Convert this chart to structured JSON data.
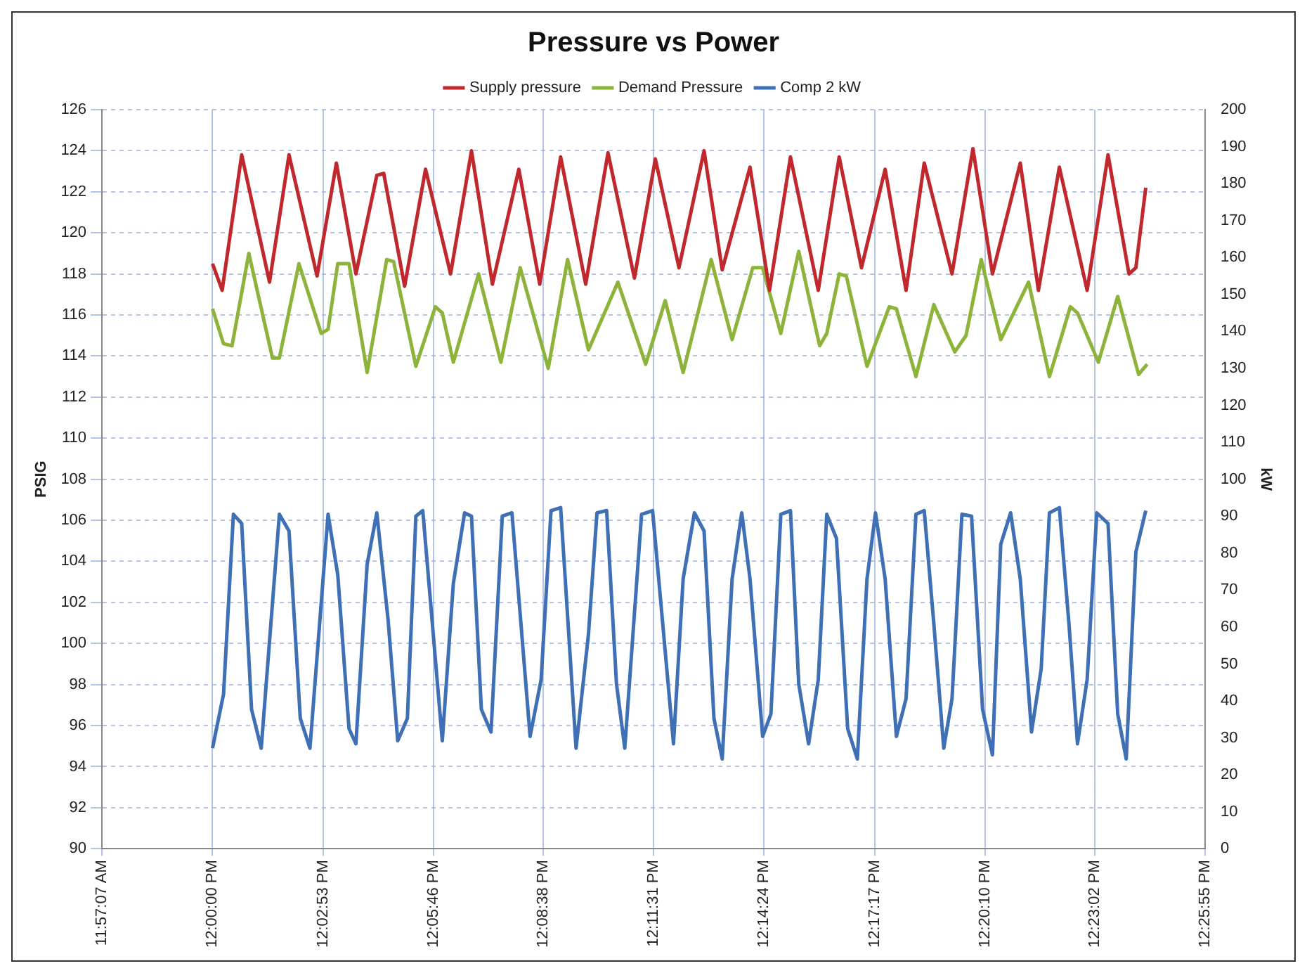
{
  "chart_data": {
    "type": "line",
    "title": "Pressure vs Power",
    "xlabel": null,
    "ylabel": "PSIG",
    "y2label": "kW",
    "legend": "top",
    "grid": true,
    "marker": "none",
    "line_style": "solid",
    "xlim": [
      11.9519,
      12.4319
    ],
    "xticks": [
      {
        "value": 11.9519,
        "label": "11:57:07 AM"
      },
      {
        "value": 12,
        "label": "12:00:00 PM"
      },
      {
        "value": 12.0481,
        "label": "12:02:53 PM"
      },
      {
        "value": 12.0961,
        "label": "12:05:46 PM"
      },
      {
        "value": 12.1439,
        "label": "12:08:38 PM"
      },
      {
        "value": 12.1919,
        "label": "12:11:31 PM"
      },
      {
        "value": 12.24,
        "label": "12:14:24 PM"
      },
      {
        "value": 12.2881,
        "label": "12:17:17 PM"
      },
      {
        "value": 12.3361,
        "label": "12:20:10 PM"
      },
      {
        "value": 12.3839,
        "label": "12:23:02 PM"
      },
      {
        "value": 12.4319,
        "label": "12:25:55 PM"
      }
    ],
    "ylim": [
      90,
      126
    ],
    "yticks": [
      90,
      92,
      94,
      96,
      98,
      100,
      102,
      104,
      106,
      108,
      110,
      112,
      114,
      116,
      118,
      120,
      122,
      124,
      126
    ],
    "y2lim": [
      0,
      200
    ],
    "y2ticks": [
      0,
      10,
      20,
      30,
      40,
      50,
      60,
      70,
      80,
      90,
      100,
      110,
      120,
      130,
      140,
      150,
      160,
      170,
      180,
      190,
      200
    ],
    "series": [
      {
        "name": "Supply pressure",
        "color": "#c0282d",
        "x": [
          12,
          12.0042,
          12.0127,
          12.0248,
          12.0333,
          12.0455,
          12.0539,
          12.0624,
          12.0715,
          12.0745,
          12.0836,
          12.0927,
          12.1036,
          12.1127,
          12.1218,
          12.1333,
          12.1424,
          12.1515,
          12.1624,
          12.1721,
          12.1836,
          12.1927,
          12.203,
          12.2139,
          12.2218,
          12.2339,
          12.2424,
          12.2515,
          12.2636,
          12.2727,
          12.2824,
          12.2927,
          12.3018,
          12.3097,
          12.3218,
          12.3309,
          12.3394,
          12.3515,
          12.3594,
          12.3685,
          12.3806,
          12.3897,
          12.3988,
          12.4018,
          12.4061
        ],
        "values": [
          118.5,
          117.2,
          123.8,
          117.6,
          123.8,
          117.9,
          123.4,
          118.0,
          122.8,
          122.9,
          117.4,
          123.1,
          118.0,
          124.0,
          117.5,
          123.1,
          117.5,
          123.7,
          117.5,
          123.9,
          117.8,
          123.6,
          118.3,
          124.0,
          118.2,
          123.2,
          117.2,
          123.7,
          117.2,
          123.7,
          118.3,
          123.1,
          117.2,
          123.4,
          118.0,
          124.1,
          118.0,
          123.4,
          117.2,
          123.2,
          117.2,
          123.8,
          118.0,
          118.3,
          122.2
        ]
      },
      {
        "name": "Demand Pressure",
        "color": "#8db33a",
        "x": [
          12,
          12.0048,
          12.0085,
          12.0158,
          12.0261,
          12.0291,
          12.0376,
          12.0473,
          12.0503,
          12.0545,
          12.0594,
          12.0673,
          12.0758,
          12.0788,
          12.0885,
          12.097,
          12.1,
          12.1048,
          12.1158,
          12.1255,
          12.1339,
          12.1461,
          12.1545,
          12.1636,
          12.1764,
          12.1885,
          12.197,
          12.2048,
          12.217,
          12.2261,
          12.2351,
          12.2394,
          12.2473,
          12.2551,
          12.2642,
          12.2673,
          12.2727,
          12.2758,
          12.2848,
          12.2945,
          12.2976,
          12.3061,
          12.3139,
          12.323,
          12.3279,
          12.3345,
          12.343,
          12.3551,
          12.3642,
          12.3733,
          12.3764,
          12.3855,
          12.3939,
          12.403,
          12.4067
        ],
        "values": [
          116.3,
          114.6,
          114.5,
          119.0,
          113.9,
          113.9,
          118.5,
          115.1,
          115.3,
          118.5,
          118.5,
          113.2,
          118.7,
          118.6,
          113.5,
          116.4,
          116.1,
          113.7,
          118.0,
          113.7,
          118.3,
          113.4,
          118.7,
          114.3,
          117.6,
          113.6,
          116.7,
          113.2,
          118.7,
          114.8,
          118.3,
          118.3,
          115.1,
          119.1,
          114.5,
          115.1,
          118.0,
          117.9,
          113.5,
          116.4,
          116.3,
          113.0,
          116.5,
          114.2,
          115.0,
          118.7,
          114.8,
          117.6,
          113.0,
          116.4,
          116.1,
          113.7,
          116.9,
          113.1,
          113.6
        ]
      },
      {
        "name": "Comp 2 kW",
        "color": "#3f6fb5",
        "axis": "y2",
        "x": [
          12,
          12.0048,
          12.0091,
          12.0127,
          12.017,
          12.0212,
          12.0291,
          12.0333,
          12.0382,
          12.0424,
          12.0503,
          12.0545,
          12.0594,
          12.0624,
          12.0673,
          12.0715,
          12.0764,
          12.0806,
          12.0848,
          12.0885,
          12.0915,
          12.1,
          12.1048,
          12.1097,
          12.1127,
          12.117,
          12.1212,
          12.1261,
          12.1303,
          12.1382,
          12.143,
          12.1473,
          12.1515,
          12.1582,
          12.1636,
          12.1673,
          12.1715,
          12.1758,
          12.1794,
          12.1867,
          12.1915,
          12.2006,
          12.2048,
          12.2097,
          12.2139,
          12.2182,
          12.2218,
          12.2261,
          12.2303,
          12.2339,
          12.2394,
          12.243,
          12.2473,
          12.2515,
          12.2551,
          12.2594,
          12.2636,
          12.2673,
          12.2715,
          12.2764,
          12.2806,
          12.2848,
          12.2885,
          12.2927,
          12.2976,
          12.3018,
          12.3061,
          12.3097,
          12.3139,
          12.3182,
          12.3218,
          12.3261,
          12.3303,
          12.3351,
          12.3394,
          12.343,
          12.3473,
          12.3515,
          12.3564,
          12.3606,
          12.3642,
          12.3685,
          12.3727,
          12.3764,
          12.3806,
          12.3848,
          12.3897,
          12.3939,
          12.3976,
          12.4018,
          12.4061
        ],
        "values": [
          27.2,
          41.8,
          90.5,
          88,
          37.7,
          27.2,
          90.5,
          86,
          35.3,
          27.2,
          90.5,
          74.2,
          32.5,
          28.4,
          77,
          90.9,
          62,
          29.2,
          35.3,
          90,
          91.5,
          29.2,
          71.8,
          90.9,
          90,
          37.7,
          31.6,
          90,
          90.9,
          30.4,
          45.8,
          91.5,
          92.3,
          27.2,
          58,
          90.9,
          91.5,
          44.6,
          27.2,
          90.5,
          91.5,
          28.4,
          73,
          90.9,
          86,
          35.3,
          24.3,
          73,
          90.9,
          73,
          30.4,
          36.5,
          90.5,
          91.5,
          44.6,
          28.4,
          45.8,
          90.5,
          84,
          32.5,
          24.3,
          73,
          90.9,
          73,
          30.4,
          40.6,
          90.5,
          91.5,
          60.8,
          27.2,
          40.6,
          90.5,
          90,
          37.7,
          25.4,
          82.4,
          90.9,
          73,
          31.6,
          48.7,
          90.9,
          92.3,
          60.8,
          28.4,
          45.8,
          90.9,
          88,
          36.5,
          24.3,
          80.3,
          91.5
        ]
      }
    ]
  }
}
